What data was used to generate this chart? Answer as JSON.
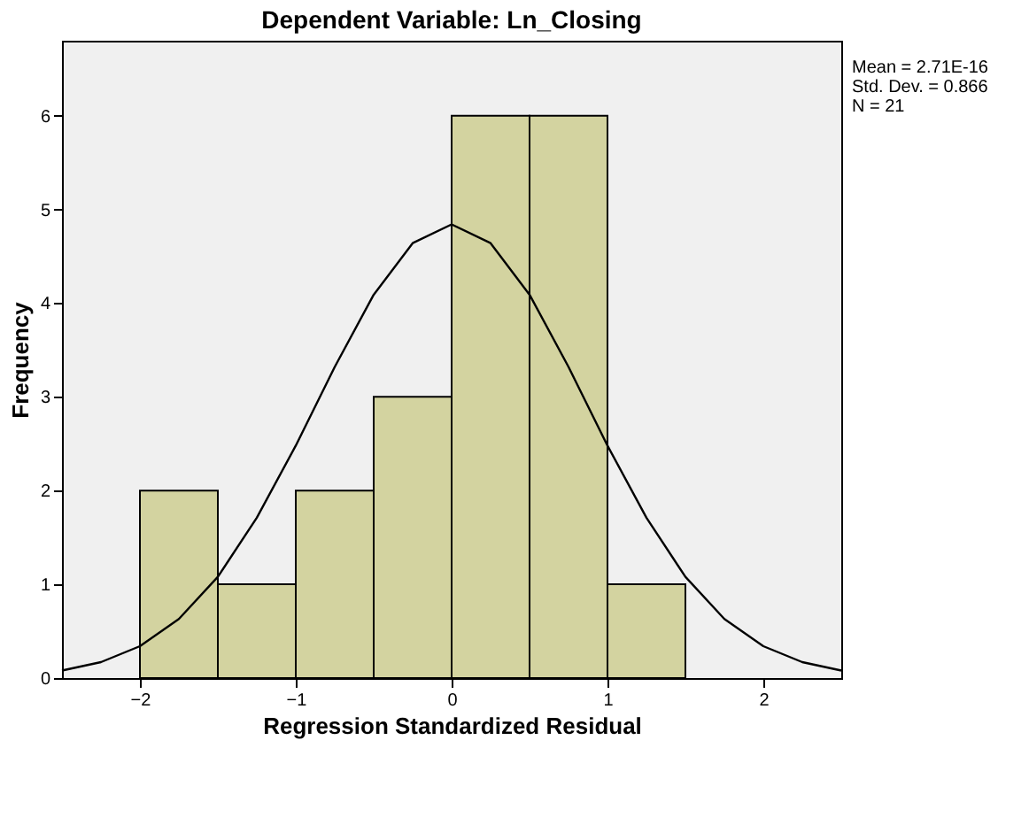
{
  "chart_data": {
    "type": "histogram",
    "title": "Dependent Variable: Ln_Closing",
    "xlabel": "Regression Standardized Residual",
    "ylabel": "Frequency",
    "bins": [
      -2,
      -1.5,
      -1,
      -0.5,
      0,
      0.5,
      1,
      1.5
    ],
    "values": [
      2,
      1,
      2,
      3,
      6,
      6,
      1
    ],
    "color": "#d3d3a0",
    "series": [
      {
        "type": "line",
        "color": "#000000",
        "x": [
          -2.5,
          -2.25,
          -2,
          -1.75,
          -1.5,
          -1.25,
          -1,
          -0.75,
          -0.5,
          -0.25,
          0,
          0.25,
          0.5,
          0.75,
          1,
          1.25,
          1.5,
          1.75,
          2,
          2.25,
          2.5
        ],
        "values": [
          0.08,
          0.17,
          0.34,
          0.63,
          1.08,
          1.71,
          2.48,
          3.32,
          4.09,
          4.64,
          4.84,
          4.64,
          4.09,
          3.32,
          2.48,
          1.71,
          1.08,
          0.63,
          0.34,
          0.17,
          0.08
        ]
      }
    ],
    "xlim": [
      -2.5,
      2.5
    ],
    "xticks": [
      -2,
      -1,
      0,
      1,
      2
    ],
    "ylim": [
      0,
      6.8
    ],
    "yticks": [
      0,
      1,
      2,
      3,
      4,
      5,
      6
    ],
    "grid": false,
    "annotations": [
      "Mean = 2.71E-16",
      "Std. Dev. = 0.866",
      "N = 21"
    ]
  }
}
